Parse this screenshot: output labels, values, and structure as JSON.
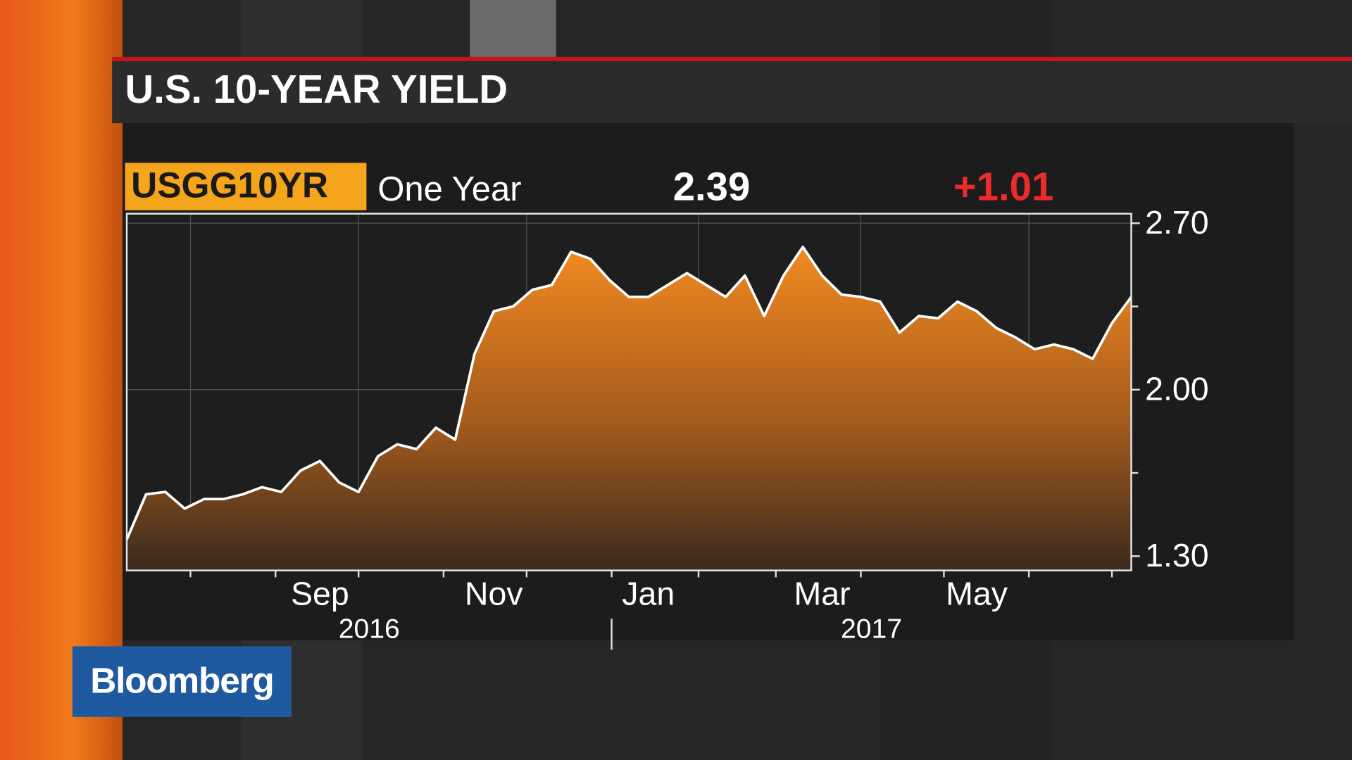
{
  "brand": "Bloomberg",
  "chart_data": {
    "type": "area",
    "title": "U.S. 10-YEAR YIELD",
    "ticker": "USGG10YR",
    "period": "One Year",
    "last": "2.39",
    "change": "+1.01",
    "color": "#f28a22",
    "line_color": "#ffffff",
    "categories": [
      null,
      null,
      null,
      null,
      null,
      null,
      null,
      null,
      null,
      null,
      "Sep",
      null,
      null,
      null,
      null,
      null,
      null,
      null,
      null,
      "Nov",
      null,
      null,
      null,
      null,
      null,
      null,
      null,
      "Jan",
      null,
      null,
      null,
      null,
      null,
      null,
      null,
      null,
      "Mar",
      null,
      null,
      null,
      null,
      null,
      null,
      null,
      "May",
      null,
      null,
      null,
      null,
      null,
      null,
      null,
      null
    ],
    "values": [
      1.37,
      1.56,
      1.57,
      1.5,
      1.54,
      1.54,
      1.56,
      1.59,
      1.57,
      1.66,
      1.7,
      1.61,
      1.57,
      1.72,
      1.77,
      1.75,
      1.84,
      1.79,
      2.15,
      2.33,
      2.35,
      2.42,
      2.44,
      2.58,
      2.55,
      2.46,
      2.39,
      2.39,
      2.44,
      2.49,
      2.44,
      2.39,
      2.48,
      2.31,
      2.48,
      2.6,
      2.48,
      2.4,
      2.39,
      2.37,
      2.24,
      2.31,
      2.3,
      2.37,
      2.33,
      2.26,
      2.22,
      2.17,
      2.19,
      2.17,
      2.13,
      2.28,
      2.39
    ],
    "x_groups": [
      "2016",
      "2017"
    ],
    "ylim": [
      1.24,
      2.74
    ],
    "yticks": [
      {
        "value": 1.3,
        "label": "1.30"
      },
      {
        "value": 2,
        "label": "2.00"
      },
      {
        "value": 2.7,
        "label": "2.70"
      }
    ],
    "minor_yticks": [
      1.65,
      2.35
    ],
    "grid": true
  }
}
